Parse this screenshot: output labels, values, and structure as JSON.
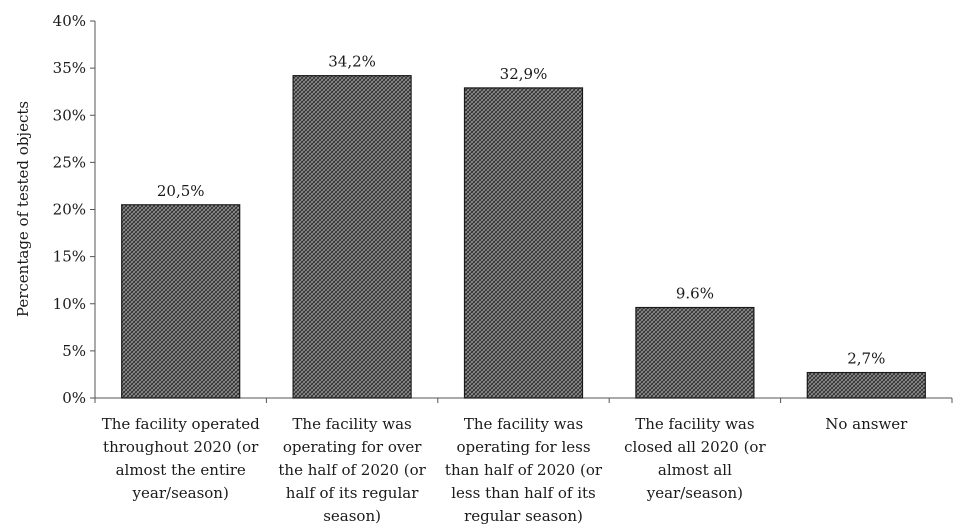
{
  "chart_data": {
    "type": "bar",
    "title": "",
    "xlabel": "",
    "ylabel": "Percentage of tested objects",
    "ylim": [
      0,
      40
    ],
    "yticks": [
      0,
      5,
      10,
      15,
      20,
      25,
      30,
      35,
      40
    ],
    "ytick_labels": [
      "0%",
      "5%",
      "10%",
      "15%",
      "20%",
      "25%",
      "30%",
      "35%",
      "40%"
    ],
    "grid": false,
    "legend": "none",
    "bar_fill": "crosshatch dark gray",
    "categories": [
      [
        "The facility operated",
        "throughout 2020 (or",
        "almost the entire",
        "year/season)"
      ],
      [
        "The facility was",
        "operating for over",
        "the half of 2020 (or",
        "half of its regular",
        "season)"
      ],
      [
        "The facility was",
        "operating for less",
        "than half of 2020 (or",
        "less than half of its",
        "regular season)"
      ],
      [
        "The facility was",
        "closed all 2020 (or",
        "almost all",
        "year/season)"
      ],
      [
        "No answer"
      ]
    ],
    "values": [
      20.5,
      34.2,
      32.9,
      9.6,
      2.7
    ],
    "data_labels": [
      "20,5%",
      "34,2%",
      "32,9%",
      "9.6%",
      "2,7%"
    ]
  }
}
